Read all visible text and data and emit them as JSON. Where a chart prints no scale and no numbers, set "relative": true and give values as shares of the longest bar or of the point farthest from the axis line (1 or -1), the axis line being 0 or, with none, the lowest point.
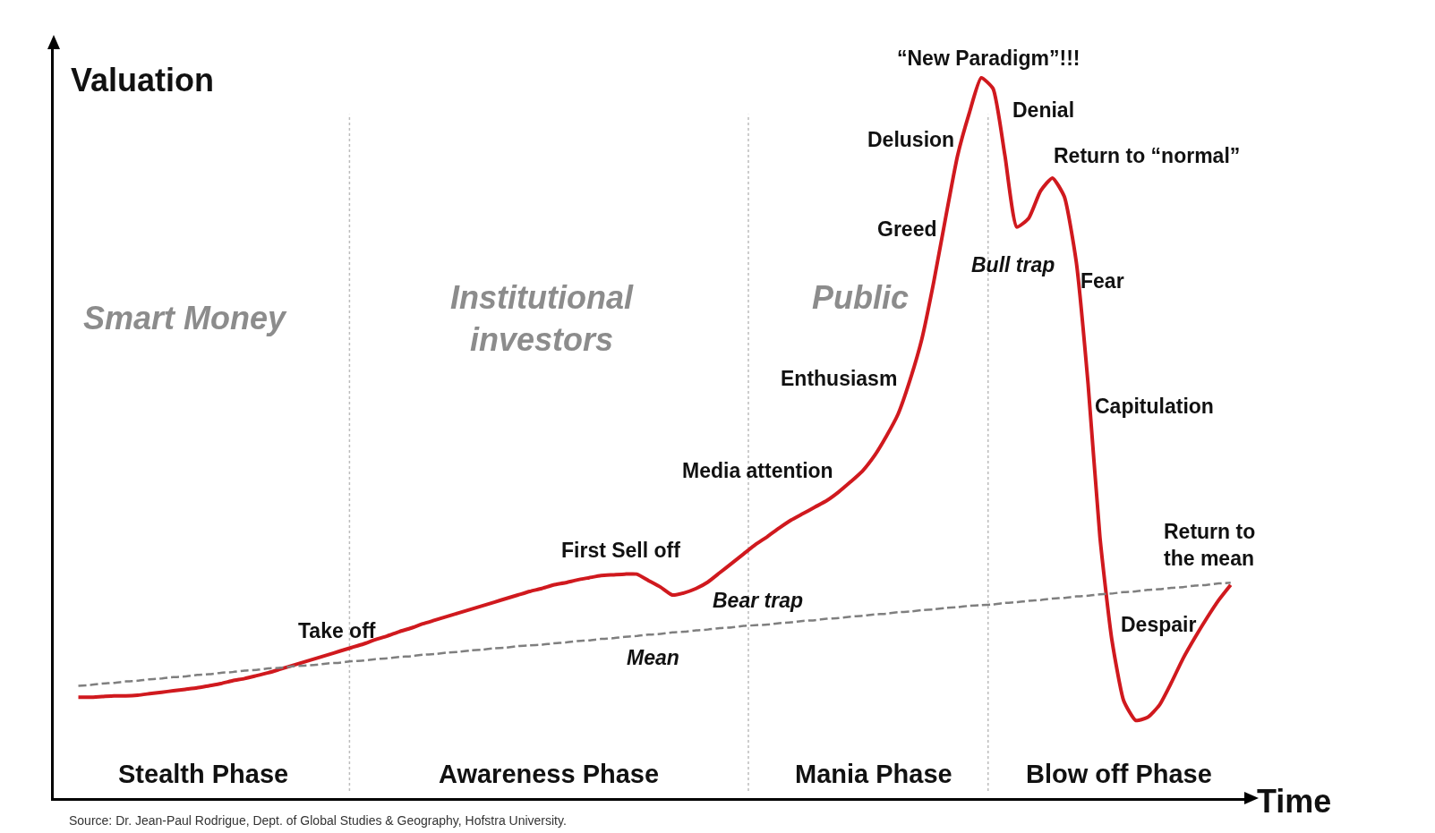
{
  "chart_data": {
    "type": "line",
    "relative": true,
    "xlabel": "Time",
    "ylabel": "Valuation",
    "categories": [
      null,
      null,
      null,
      null,
      null,
      null,
      null,
      null,
      null,
      null,
      null,
      null,
      null,
      null,
      null,
      null,
      null,
      null,
      null,
      null,
      null,
      null,
      null,
      null,
      null,
      null,
      null,
      null,
      null,
      null,
      null,
      null,
      null,
      null,
      null,
      null,
      null,
      null,
      null,
      null,
      null,
      null,
      null,
      null,
      null,
      null,
      null,
      null,
      null,
      null,
      null,
      null,
      null,
      null,
      null,
      null,
      null,
      null,
      null,
      null,
      null,
      null,
      null,
      null,
      null,
      null,
      null,
      null,
      null,
      null,
      null,
      null,
      null,
      null,
      null,
      null,
      null,
      null,
      null,
      null,
      null,
      null,
      null,
      null,
      null,
      null,
      null,
      null,
      null,
      null,
      null,
      null,
      null,
      null,
      null,
      null,
      null,
      null
    ],
    "series": [
      {
        "color": "#d0191e",
        "line_style": "solid",
        "values": [
          0.14,
          0.14,
          0.141,
          0.142,
          0.142,
          0.143,
          0.145,
          0.147,
          0.149,
          0.151,
          0.153,
          0.156,
          0.159,
          0.163,
          0.166,
          0.17,
          0.174,
          0.179,
          0.184,
          0.189,
          0.194,
          0.199,
          0.204,
          0.209,
          0.214,
          0.22,
          0.225,
          0.231,
          0.236,
          0.242,
          0.247,
          0.252,
          0.257,
          0.262,
          0.267,
          0.272,
          0.277,
          0.282,
          0.287,
          0.291,
          0.296,
          0.299,
          0.303,
          0.306,
          0.309,
          0.31,
          0.311,
          0.311,
          0.302,
          0.293,
          0.282,
          0.285,
          0.291,
          0.3,
          0.313,
          0.326,
          0.339,
          0.352,
          0.363,
          0.375,
          0.386,
          0.395,
          0.404,
          0.413,
          0.425,
          0.439,
          0.454,
          0.475,
          0.502,
          0.533,
          0.58,
          0.637,
          0.716,
          0.805,
          0.891,
          0.951,
          1,
          0.985,
          0.892,
          0.793,
          0.805,
          0.843,
          0.861,
          0.835,
          0.745,
          0.575,
          0.362,
          0.22,
          0.135,
          0.108,
          0.112,
          0.129,
          0.16,
          0.194,
          0.223,
          0.25,
          0.275,
          0.296
        ]
      },
      {
        "color": "#7f7f7f",
        "line_style": "dashed",
        "values": [
          0.156,
          0.157,
          0.159,
          0.16,
          0.162,
          0.163,
          0.165,
          0.166,
          0.168,
          0.169,
          0.171,
          0.172,
          0.174,
          0.175,
          0.177,
          0.178,
          0.18,
          0.181,
          0.183,
          0.184,
          0.185,
          0.187,
          0.188,
          0.19,
          0.191,
          0.193,
          0.194,
          0.196,
          0.197,
          0.199,
          0.2,
          0.202,
          0.203,
          0.205,
          0.206,
          0.208,
          0.209,
          0.211,
          0.212,
          0.213,
          0.215,
          0.216,
          0.218,
          0.219,
          0.221,
          0.222,
          0.224,
          0.225,
          0.227,
          0.228,
          0.23,
          0.231,
          0.233,
          0.234,
          0.236,
          0.237,
          0.239,
          0.24,
          0.241,
          0.243,
          0.244,
          0.246,
          0.247,
          0.249,
          0.25,
          0.252,
          0.253,
          0.255,
          0.256,
          0.258,
          0.259,
          0.261,
          0.262,
          0.264,
          0.265,
          0.267,
          0.268,
          0.269,
          0.271,
          0.272,
          0.274,
          0.275,
          0.277,
          0.278,
          0.28,
          0.281,
          0.283,
          0.284,
          0.286,
          0.287,
          0.289,
          0.29,
          0.292,
          0.293,
          0.295,
          0.296,
          0.298,
          0.299
        ]
      }
    ],
    "annotations": [
      "“New Paradigm”!!!",
      "Denial",
      "Delusion",
      "Return to “normal”",
      "Greed",
      "Bull trap",
      "Fear",
      "Enthusiasm",
      "Capitulation",
      "Media attention",
      "Return to\nthe mean",
      "First Sell off",
      "Bear trap",
      "Take off",
      "Despair",
      "Mean",
      "Smart Money",
      "Institutional\ninvestors",
      "Public",
      "Stealth Phase",
      "Awareness Phase",
      "Mania Phase",
      "Blow off Phase",
      "Source: Dr. Jean-Paul Rodrigue, Dept. of Global Studies & Geography, Hofstra University."
    ]
  }
}
